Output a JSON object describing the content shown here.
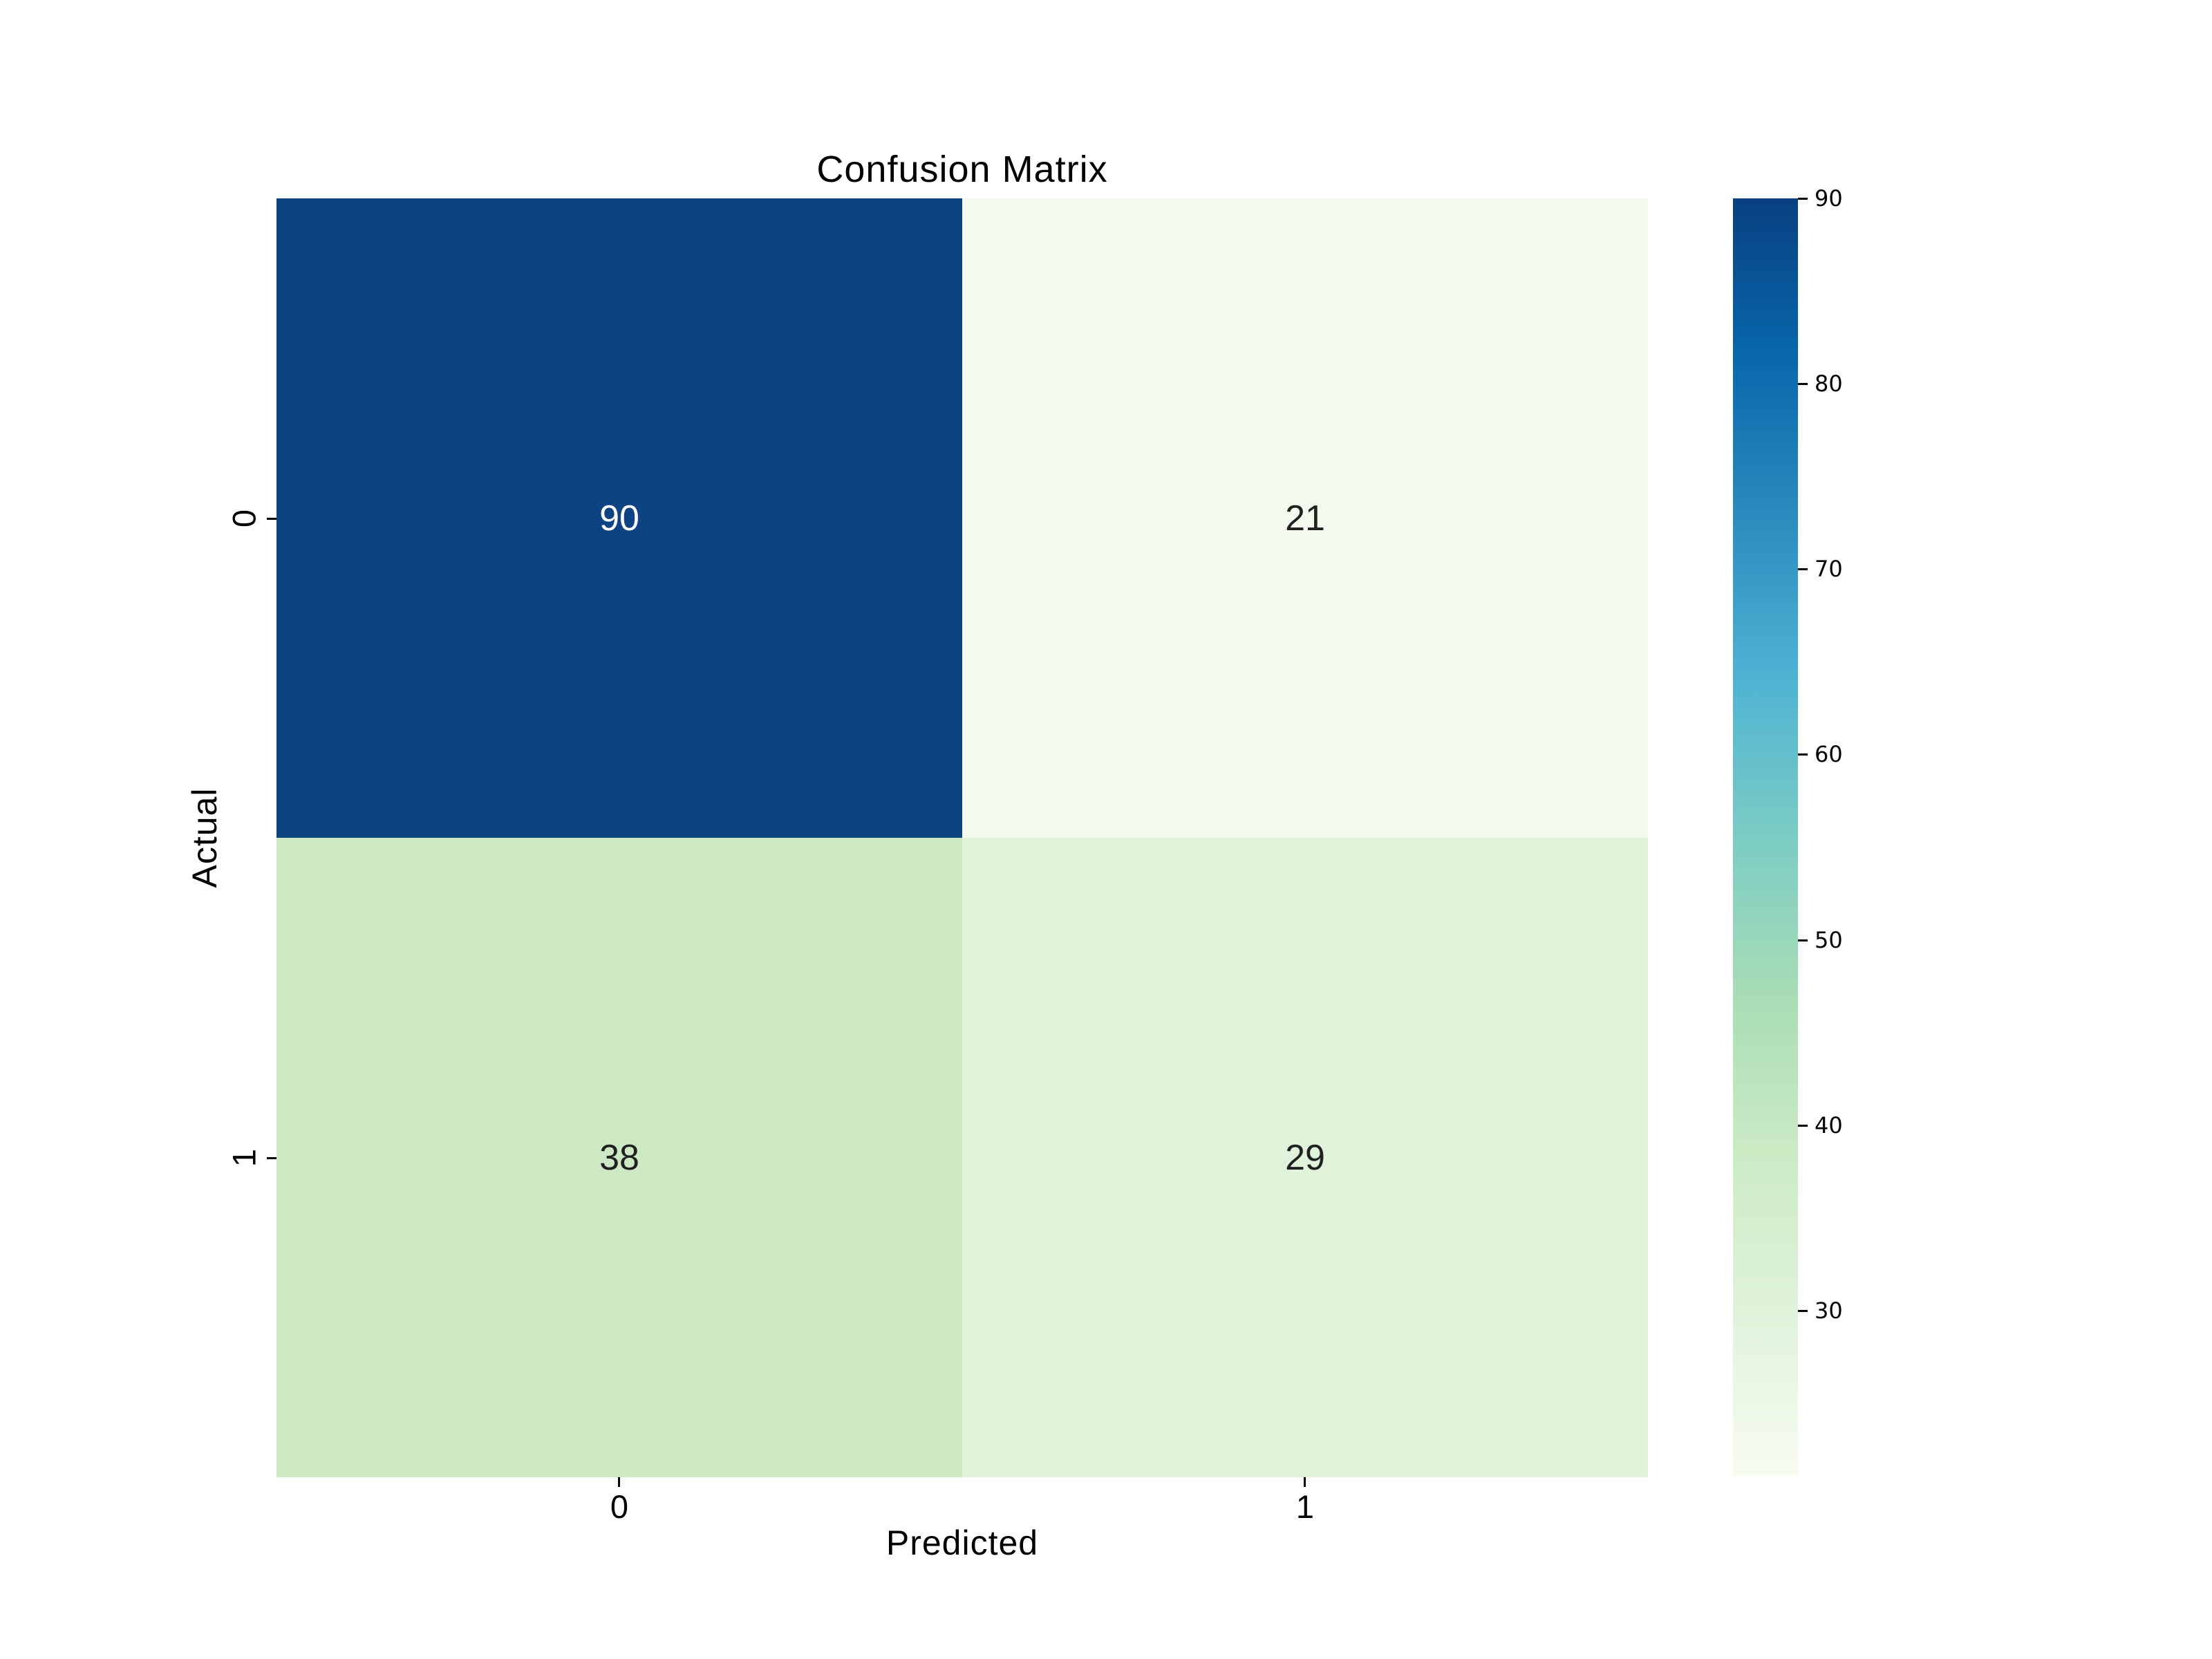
{
  "figure": {
    "background_color": "#ffffff"
  },
  "chart_data": {
    "type": "heatmap",
    "title": "Confusion Matrix",
    "xlabel": "Predicted",
    "ylabel": "Actual",
    "x_tick_labels": [
      "0",
      "1"
    ],
    "y_tick_labels": [
      "0",
      "1"
    ],
    "matrix": [
      [
        90,
        21
      ],
      [
        38,
        29
      ]
    ],
    "annotations": [
      "90",
      "21",
      "38",
      "29"
    ],
    "vmin": 21,
    "vmax": 90,
    "colormap": "GnBu",
    "grid": false,
    "cell_colors": [
      [
        "#0b4383",
        "#f5faef"
      ],
      [
        "#cce9c4",
        "#e0f2da"
      ]
    ],
    "annotation_text_colors": [
      [
        "#ffffff",
        "#212121"
      ],
      [
        "#212121",
        "#212121"
      ]
    ],
    "colorbar": {
      "position": "right",
      "ticks": [
        "90",
        "80",
        "70",
        "60",
        "50",
        "40",
        "30"
      ],
      "top_color": "#084081",
      "bottom_color": "#f7fcf0"
    }
  }
}
